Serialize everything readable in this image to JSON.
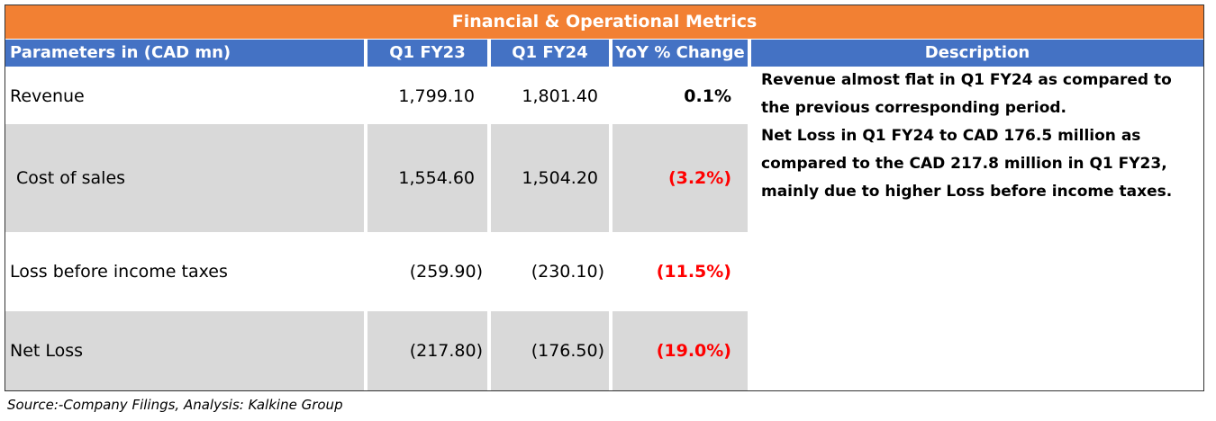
{
  "title": "Financial & Operational Metrics",
  "headers": {
    "parameters": "Parameters in (CAD mn)",
    "q1_fy23": "Q1 FY23",
    "q1_fy24": "Q1 FY24",
    "yoy": "YoY % Change",
    "description": "Description"
  },
  "rows": [
    {
      "parameter": "Revenue",
      "q1_fy23": "1,799.10",
      "q1_fy24": "1,801.40",
      "yoy": "0.1%"
    },
    {
      "parameter": "Cost of sales",
      "q1_fy23": "1,554.60",
      "q1_fy24": "1,504.20",
      "yoy": "(3.2%)"
    },
    {
      "parameter": "Loss before income taxes",
      "q1_fy23": "(259.90)",
      "q1_fy24": "(230.10)",
      "yoy": "(11.5%)"
    },
    {
      "parameter": "Net Loss",
      "q1_fy23": "(217.80)",
      "q1_fy24": "(176.50)",
      "yoy": "(19.0%)"
    }
  ],
  "description": [
    "Revenue almost flat in  Q1 FY24 as compared to\nthe previous corresponding period.",
    "Net Loss in  Q1 FY24  to CAD 176.5 million as\ncompared to the CAD 217.8 million in Q1 FY23,\nmainly due to higher Loss before income taxes."
  ],
  "colors": {
    "title_bg": "#f28033",
    "header_bg": "#4472c4",
    "row_gray": "#d9d9d9",
    "negative": "#ff0000"
  },
  "source": "Source:-Company Filings, Analysis: Kalkine Group"
}
